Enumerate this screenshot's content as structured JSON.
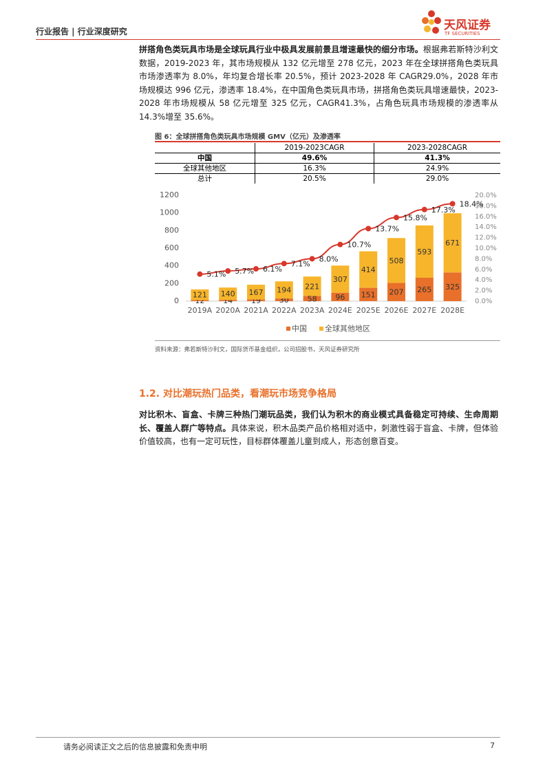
{
  "header": {
    "left": "行业报告 | 行业深度研究",
    "brand": "天风证券",
    "brand_en": "TF SECURITIES"
  },
  "paragraph1": {
    "bold": "拼搭角色类玩具市场是全球玩具行业中极具发展前景且增速最快的细分市场。",
    "text": "根据弗若斯特沙利文数据，2019-2023 年，其市场规模从 132 亿元增至 278 亿元，2023 年在全球拼搭角色类玩具市场渗透率为 8.0%，年均复合增长率 20.5%，预计 2023-2028 年 CAGR29.0%，2028 年市场规模达 996 亿元，渗透率 18.4%，在中国角色类玩具市场，拼搭角色类玩具增速最快，2023-2028 年市场规模从 58 亿元增至 325 亿元，CAGR41.3%，占角色玩具市场规模的渗透率从 14.3%增至 35.6%。"
  },
  "figure": {
    "title": "图 6：全球拼搭角色类玩具市场规模 GMV（亿元）及渗透率",
    "source": "资料来源：弗若斯特沙利文，国际货币基金组织，公司招股书，天风证券研究所"
  },
  "table": {
    "header": [
      "2019-2023CAGR",
      "2023-2028CAGR"
    ],
    "rows": [
      [
        "中国",
        "49.6%",
        "41.3%"
      ],
      [
        "全球其他地区",
        "16.3%",
        "24.9%"
      ],
      [
        "总计",
        "20.5%",
        "29.0%"
      ]
    ]
  },
  "chart_data": {
    "type": "bar",
    "stacked": true,
    "categories": [
      "2019A",
      "2020A",
      "2021A",
      "2022A",
      "2023A",
      "2024E",
      "2025E",
      "2026E",
      "2027E",
      "2028E"
    ],
    "series": [
      {
        "name": "中国",
        "color": "#e8702a",
        "values": [
          12,
          14,
          19,
          30,
          58,
          96,
          151,
          207,
          265,
          325
        ]
      },
      {
        "name": "全球其他地区",
        "color": "#f7b52c",
        "values": [
          121,
          140,
          167,
          194,
          221,
          307,
          414,
          508,
          593,
          671
        ]
      },
      {
        "type": "line",
        "axis": "y2",
        "color": "#d7382b",
        "values": [
          5.1,
          5.7,
          6.1,
          7.1,
          8.0,
          10.7,
          13.7,
          15.8,
          17.3,
          18.4
        ],
        "value_labels": [
          "5.1%",
          "5.7%",
          "6.1%",
          "7.1%",
          "8.0%",
          "10.7%",
          "13.7%",
          "15.8%",
          "17.3%",
          "18.4%"
        ]
      }
    ],
    "ylim": [
      0,
      1200
    ],
    "yticks": [
      0,
      200,
      400,
      600,
      800,
      1000,
      1200
    ],
    "y2lim": [
      0,
      20
    ],
    "y2ticks": [
      {
        "value": 0,
        "label": "0.0%"
      },
      {
        "value": 2,
        "label": "2.0%"
      },
      {
        "value": 4,
        "label": "4.0%"
      },
      {
        "value": 6,
        "label": "6.0%"
      },
      {
        "value": 8,
        "label": "8.0%"
      },
      {
        "value": 10,
        "label": "10.0%"
      },
      {
        "value": 12,
        "label": "12.0%"
      },
      {
        "value": 14,
        "label": "14.0%"
      },
      {
        "value": 16,
        "label": "16.0%"
      },
      {
        "value": 18,
        "label": "18.0%"
      },
      {
        "value": 20,
        "label": "20.0%"
      }
    ],
    "legend": "bottom"
  },
  "section": {
    "number": "1.2.",
    "title": "对比潮玩热门品类，看潮玩市场竞争格局"
  },
  "paragraph2": {
    "bold": "对比积木、盲盒、卡牌三种热门潮玩品类，我们认为积木的商业模式具备稳定可持续、生命周期长、覆盖人群广等特点。",
    "text": "具体来说，积木品类产品价格相对适中，刺激性弱于盲盒、卡牌，但体验价值较高，也有一定可玩性，目标群体覆盖儿童到成人，形态创意百变。"
  },
  "footer": {
    "disclaimer": "请务必阅读正文之后的信息披露和免责申明",
    "page": 7
  }
}
